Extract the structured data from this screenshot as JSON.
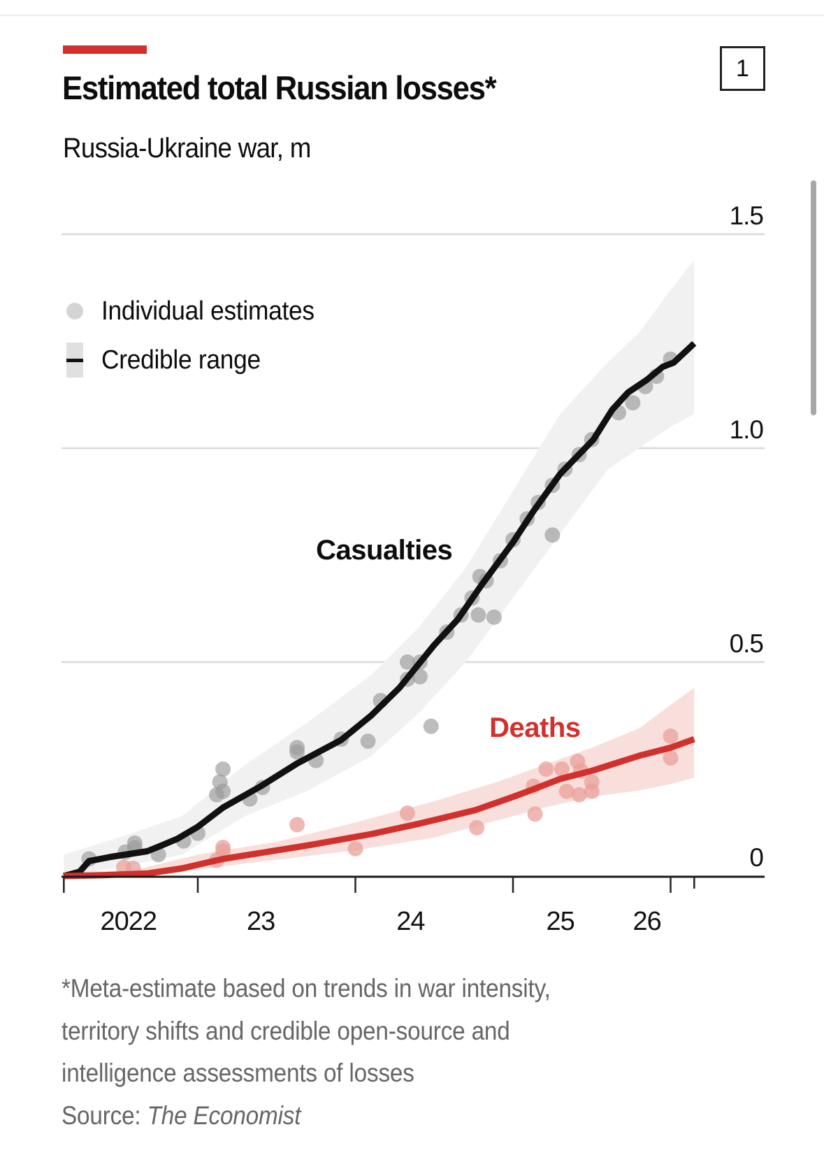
{
  "header": {
    "title": "Estimated total Russian losses*",
    "subtitle": "Russia-Ukraine war, m",
    "chart_number": "1"
  },
  "legend": {
    "estimates_label": "Individual estimates",
    "range_label": "Credible range"
  },
  "footnote": {
    "lines": [
      "*Meta-estimate based on trends in war intensity,",
      "territory shifts and credible open-source and",
      "intelligence assessments of losses"
    ],
    "source_prefix": "Source: ",
    "source_name": "The Economist"
  },
  "colors": {
    "accent": "#d0312d",
    "casualties_line": "#111111",
    "casualties_band": "#f1f1f1",
    "casualties_dots": "#9a9a9a",
    "deaths_line": "#d0312d",
    "deaths_band": "#f8dcd8",
    "deaths_dots": "#e8a09a",
    "gridline": "#d9d9d9",
    "footnote_text": "#666666"
  },
  "chart_data": {
    "type": "line",
    "title": "Estimated total Russian losses*",
    "subtitle": "Russia-Ukraine war, m",
    "xlabel": "",
    "ylabel": "m",
    "xlim": [
      2022.15,
      2026.15
    ],
    "ylim": [
      0,
      1.5
    ],
    "y_ticks": [
      {
        "value": 0,
        "label": "0"
      },
      {
        "value": 0.5,
        "label": "0.5"
      },
      {
        "value": 1.0,
        "label": "1.0"
      },
      {
        "value": 1.5,
        "label": "1.5"
      }
    ],
    "x_ticks": [
      {
        "value": 2022.15,
        "label": ""
      },
      {
        "value": 2023,
        "label": ""
      },
      {
        "value": 2024,
        "label": ""
      },
      {
        "value": 2025,
        "label": ""
      },
      {
        "value": 2026,
        "label": ""
      },
      {
        "value": 2026.15,
        "label": ""
      }
    ],
    "x_labels": [
      {
        "value": 2022.56,
        "label": "2022"
      },
      {
        "value": 2023.4,
        "label": "23"
      },
      {
        "value": 2024.35,
        "label": "24"
      },
      {
        "value": 2025.3,
        "label": "25"
      },
      {
        "value": 2025.85,
        "label": "26"
      }
    ],
    "grid": true,
    "legend_position": "top-left",
    "series": [
      {
        "name": "Casualties",
        "label_pos": {
          "x": 2023.75,
          "y": 0.74
        },
        "line": [
          [
            2022.15,
            0.0
          ],
          [
            2022.25,
            0.01
          ],
          [
            2022.31,
            0.035
          ],
          [
            2022.45,
            0.045
          ],
          [
            2022.68,
            0.058
          ],
          [
            2022.76,
            0.07
          ],
          [
            2022.87,
            0.087
          ],
          [
            2023.0,
            0.115
          ],
          [
            2023.16,
            0.16
          ],
          [
            2023.4,
            0.21
          ],
          [
            2023.63,
            0.263
          ],
          [
            2023.91,
            0.318
          ],
          [
            2024.1,
            0.375
          ],
          [
            2024.28,
            0.44
          ],
          [
            2024.5,
            0.54
          ],
          [
            2024.65,
            0.6
          ],
          [
            2024.8,
            0.68
          ],
          [
            2025.0,
            0.78
          ],
          [
            2025.13,
            0.853
          ],
          [
            2025.3,
            0.94
          ],
          [
            2025.51,
            1.02
          ],
          [
            2025.63,
            1.09
          ],
          [
            2025.73,
            1.13
          ],
          [
            2025.85,
            1.16
          ],
          [
            2025.95,
            1.19
          ],
          [
            2026.02,
            1.2
          ],
          [
            2026.15,
            1.245
          ]
        ],
        "band_upper": [
          [
            2022.15,
            0.05
          ],
          [
            2022.5,
            0.09
          ],
          [
            2022.9,
            0.14
          ],
          [
            2023.3,
            0.26
          ],
          [
            2023.7,
            0.36
          ],
          [
            2024.1,
            0.47
          ],
          [
            2024.4,
            0.58
          ],
          [
            2024.7,
            0.72
          ],
          [
            2025.0,
            0.9
          ],
          [
            2025.3,
            1.08
          ],
          [
            2025.6,
            1.2
          ],
          [
            2025.8,
            1.27
          ],
          [
            2026.0,
            1.37
          ],
          [
            2026.15,
            1.44
          ]
        ],
        "band_lower": [
          [
            2022.15,
            0.0
          ],
          [
            2022.5,
            0.02
          ],
          [
            2022.9,
            0.05
          ],
          [
            2023.3,
            0.14
          ],
          [
            2023.7,
            0.2
          ],
          [
            2024.1,
            0.28
          ],
          [
            2024.4,
            0.38
          ],
          [
            2024.7,
            0.5
          ],
          [
            2025.0,
            0.65
          ],
          [
            2025.3,
            0.8
          ],
          [
            2025.6,
            0.95
          ],
          [
            2025.8,
            1.0
          ],
          [
            2026.0,
            1.05
          ],
          [
            2026.15,
            1.08
          ]
        ],
        "points": [
          [
            2022.31,
            0.04
          ],
          [
            2022.54,
            0.056
          ],
          [
            2022.6,
            0.077
          ],
          [
            2022.6,
            0.066
          ],
          [
            2022.75,
            0.05
          ],
          [
            2022.91,
            0.082
          ],
          [
            2023.0,
            0.1
          ],
          [
            2023.12,
            0.19
          ],
          [
            2023.16,
            0.25
          ],
          [
            2023.14,
            0.22
          ],
          [
            2023.16,
            0.198
          ],
          [
            2023.33,
            0.18
          ],
          [
            2023.41,
            0.207
          ],
          [
            2023.63,
            0.3
          ],
          [
            2023.63,
            0.29
          ],
          [
            2023.75,
            0.27
          ],
          [
            2023.91,
            0.32
          ],
          [
            2024.08,
            0.315
          ],
          [
            2024.16,
            0.41
          ],
          [
            2024.33,
            0.5
          ],
          [
            2024.41,
            0.5
          ],
          [
            2024.33,
            0.46
          ],
          [
            2024.41,
            0.466
          ],
          [
            2024.48,
            0.35
          ],
          [
            2024.58,
            0.57
          ],
          [
            2024.67,
            0.61
          ],
          [
            2024.74,
            0.65
          ],
          [
            2024.79,
            0.7
          ],
          [
            2024.83,
            0.69
          ],
          [
            2024.78,
            0.61
          ],
          [
            2024.88,
            0.605
          ],
          [
            2024.92,
            0.737
          ],
          [
            2025.0,
            0.786
          ],
          [
            2025.09,
            0.835
          ],
          [
            2025.16,
            0.873
          ],
          [
            2025.25,
            0.913
          ],
          [
            2025.25,
            0.797
          ],
          [
            2025.33,
            0.951
          ],
          [
            2025.42,
            0.985
          ],
          [
            2025.5,
            1.02
          ],
          [
            2025.67,
            1.083
          ],
          [
            2025.76,
            1.106
          ],
          [
            2025.84,
            1.144
          ],
          [
            2025.91,
            1.168
          ],
          [
            2026.0,
            1.208
          ]
        ]
      },
      {
        "name": "Deaths",
        "label_pos": {
          "x": 2024.85,
          "y": 0.325
        },
        "line": [
          [
            2022.15,
            0.0
          ],
          [
            2022.4,
            0.002
          ],
          [
            2022.68,
            0.006
          ],
          [
            2022.9,
            0.018
          ],
          [
            2023.16,
            0.04
          ],
          [
            2023.45,
            0.057
          ],
          [
            2023.72,
            0.073
          ],
          [
            2024.1,
            0.098
          ],
          [
            2024.4,
            0.122
          ],
          [
            2024.76,
            0.154
          ],
          [
            2025.0,
            0.185
          ],
          [
            2025.13,
            0.203
          ],
          [
            2025.3,
            0.227
          ],
          [
            2025.51,
            0.247
          ],
          [
            2025.8,
            0.281
          ],
          [
            2026.0,
            0.3
          ],
          [
            2026.15,
            0.32
          ]
        ],
        "band_upper": [
          [
            2022.15,
            0.008
          ],
          [
            2022.6,
            0.014
          ],
          [
            2023.0,
            0.05
          ],
          [
            2023.5,
            0.08
          ],
          [
            2024.0,
            0.125
          ],
          [
            2024.5,
            0.175
          ],
          [
            2024.9,
            0.22
          ],
          [
            2025.2,
            0.26
          ],
          [
            2025.5,
            0.3
          ],
          [
            2025.8,
            0.345
          ],
          [
            2026.0,
            0.4
          ],
          [
            2026.15,
            0.44
          ]
        ],
        "band_lower": [
          [
            2022.15,
            0.0
          ],
          [
            2022.6,
            0.0
          ],
          [
            2023.0,
            0.015
          ],
          [
            2023.5,
            0.038
          ],
          [
            2024.0,
            0.06
          ],
          [
            2024.5,
            0.09
          ],
          [
            2024.9,
            0.13
          ],
          [
            2025.2,
            0.16
          ],
          [
            2025.5,
            0.185
          ],
          [
            2025.8,
            0.2
          ],
          [
            2026.0,
            0.215
          ],
          [
            2026.15,
            0.23
          ]
        ],
        "points": [
          [
            2022.53,
            0.02
          ],
          [
            2022.59,
            0.018
          ],
          [
            2023.16,
            0.067
          ],
          [
            2023.16,
            0.058
          ],
          [
            2023.12,
            0.037
          ],
          [
            2023.63,
            0.12
          ],
          [
            2024.0,
            0.064
          ],
          [
            2024.33,
            0.147
          ],
          [
            2024.77,
            0.113
          ],
          [
            2025.13,
            0.21
          ],
          [
            2025.14,
            0.145
          ],
          [
            2025.21,
            0.25
          ],
          [
            2025.31,
            0.25
          ],
          [
            2025.34,
            0.198
          ],
          [
            2025.41,
            0.268
          ],
          [
            2025.43,
            0.246
          ],
          [
            2025.42,
            0.19
          ],
          [
            2025.5,
            0.22
          ],
          [
            2025.5,
            0.198
          ],
          [
            2026.0,
            0.327
          ],
          [
            2026.0,
            0.276
          ]
        ]
      }
    ]
  }
}
